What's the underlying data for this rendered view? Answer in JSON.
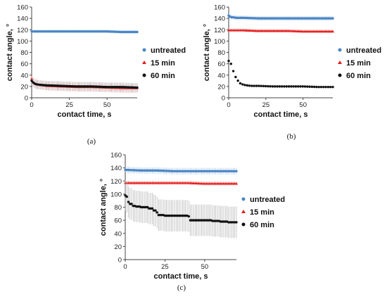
{
  "figure": {
    "panel_labels": [
      "(a)",
      "(b)",
      "(c)"
    ]
  },
  "colors": {
    "untreated": "#4a86c5",
    "15_min": "#e41f1f",
    "60_min": "#111111",
    "error_bar": "#999999"
  },
  "chart_data": [
    {
      "type": "scatter",
      "panel": "(a)",
      "xlabel": "contact time, s",
      "ylabel": "contact angle, °",
      "xlim": [
        0,
        70
      ],
      "ylim": [
        0,
        160
      ],
      "xticks": [
        0,
        25,
        50
      ],
      "yticks": [
        0,
        20,
        40,
        60,
        80,
        100,
        120,
        140,
        160
      ],
      "grid": false,
      "legend_position": "right",
      "series": [
        {
          "name": "untreated",
          "marker": "circle",
          "x": [
            0,
            10,
            20,
            30,
            40,
            50,
            60,
            70
          ],
          "y": [
            117,
            117,
            117,
            117,
            117,
            117,
            116,
            116
          ],
          "err": 3
        },
        {
          "name": "15 min",
          "marker": "triangle",
          "x": [
            0,
            1,
            2,
            3,
            5,
            10,
            20,
            30,
            40,
            50,
            60,
            70
          ],
          "y": [
            34,
            28,
            26,
            24,
            23,
            21,
            20,
            19,
            19,
            18,
            17,
            17
          ],
          "err": 8
        },
        {
          "name": "60 min",
          "marker": "circle",
          "x": [
            0,
            1,
            2,
            3,
            5,
            10,
            20,
            30,
            40,
            50,
            60,
            70
          ],
          "y": [
            30,
            27,
            25,
            24,
            23,
            22,
            21,
            20,
            20,
            19,
            19,
            18
          ],
          "err": 8
        }
      ]
    },
    {
      "type": "scatter",
      "panel": "(b)",
      "xlabel": "contact time, s",
      "ylabel": "contact angle, °",
      "xlim": [
        0,
        70
      ],
      "ylim": [
        0,
        160
      ],
      "xticks": [
        0,
        25,
        50
      ],
      "yticks": [
        0,
        20,
        40,
        60,
        80,
        100,
        120,
        140,
        160
      ],
      "grid": false,
      "legend_position": "right",
      "series": [
        {
          "name": "untreated",
          "marker": "circle",
          "x": [
            0,
            1,
            2,
            3,
            5,
            10,
            20,
            30,
            40,
            50,
            60,
            70
          ],
          "y": [
            145,
            143,
            142,
            142,
            141,
            141,
            140,
            140,
            140,
            140,
            140,
            140
          ],
          "err": 4
        },
        {
          "name": "15 min",
          "marker": "triangle",
          "x": [
            0,
            10,
            20,
            30,
            40,
            50,
            60,
            70
          ],
          "y": [
            119,
            119,
            118,
            118,
            118,
            117,
            117,
            117
          ],
          "err": 3
        },
        {
          "name": "60 min",
          "marker": "circle",
          "x": [
            0,
            1,
            2,
            3,
            4,
            5,
            6,
            7,
            8,
            10,
            12,
            15,
            20,
            30,
            40,
            50,
            60,
            70
          ],
          "y": [
            65,
            66,
            55,
            48,
            40,
            35,
            31,
            27,
            25,
            23,
            22,
            21,
            21,
            20,
            20,
            20,
            19,
            19
          ],
          "err": 0
        }
      ]
    },
    {
      "type": "scatter",
      "panel": "(c)",
      "xlabel": "contact time, s",
      "ylabel": "contact angle, °",
      "xlim": [
        0,
        70
      ],
      "ylim": [
        0,
        160
      ],
      "xticks": [
        0,
        25,
        50
      ],
      "yticks": [
        0,
        20,
        40,
        60,
        80,
        100,
        120,
        140,
        160
      ],
      "grid": false,
      "legend_position": "right",
      "series": [
        {
          "name": "untreated",
          "marker": "circle",
          "x": [
            0,
            10,
            20,
            30,
            40,
            50,
            60,
            70
          ],
          "y": [
            137,
            136,
            136,
            135,
            135,
            135,
            135,
            135
          ],
          "err": 5
        },
        {
          "name": "15 min",
          "marker": "triangle",
          "x": [
            0,
            10,
            20,
            30,
            40,
            50,
            60,
            70
          ],
          "y": [
            117,
            117,
            117,
            117,
            117,
            116,
            116,
            116
          ],
          "err": 3
        },
        {
          "name": "60 min",
          "marker": "circle",
          "x": [
            0,
            1,
            2,
            3,
            5,
            7,
            10,
            15,
            18,
            20,
            21,
            25,
            30,
            35,
            40,
            41,
            45,
            50,
            55,
            60,
            65,
            70
          ],
          "y": [
            98,
            96,
            88,
            85,
            82,
            81,
            80,
            78,
            75,
            72,
            68,
            67,
            67,
            67,
            66,
            60,
            60,
            60,
            59,
            58,
            57,
            57
          ],
          "err": 24
        }
      ]
    }
  ]
}
